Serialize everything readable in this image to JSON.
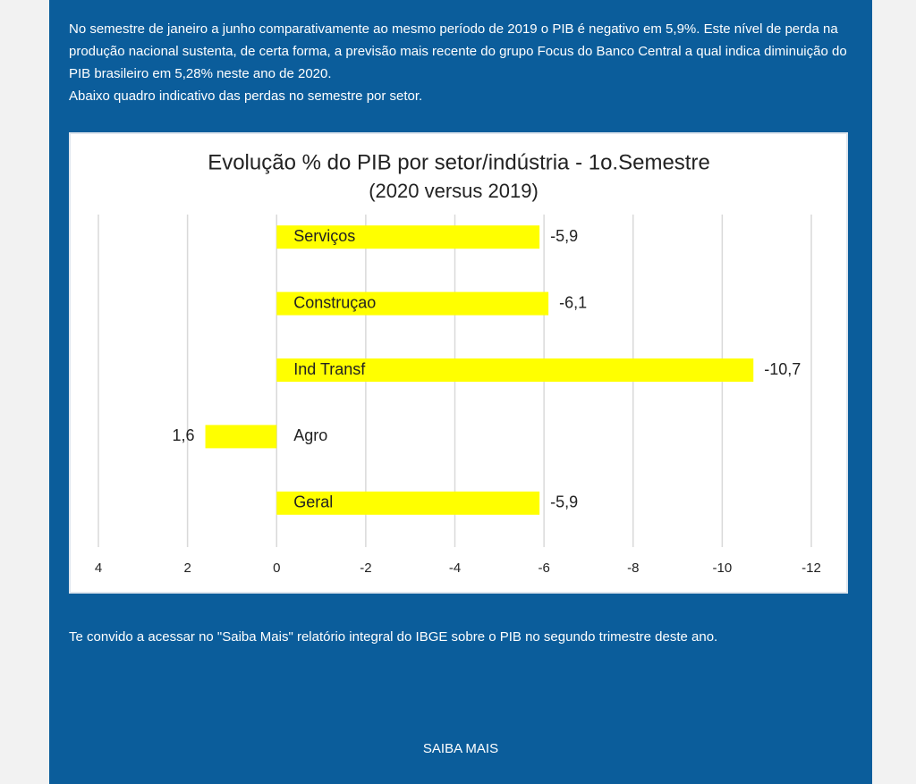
{
  "paragraphs": [
    "No semestre de janeiro a junho comparativamente ao mesmo período de 2019 o PIB é negativo em 5,9%. Este nível de perda na produção nacional sustenta, de certa forma, a previsão mais recente do grupo Focus do Banco Central a qual indica diminuição do PIB brasileiro em 5,28% neste ano de 2020.",
    "Abaixo quadro indicativo das perdas no semestre por setor."
  ],
  "chart_data": {
    "type": "bar",
    "orientation": "horizontal",
    "title": "Evolução % do PIB por setor/indústria - 1o.Semestre",
    "subtitle": "(2020 versus 2019)",
    "categories": [
      "Serviços",
      "Construçao",
      "Ind Transf",
      "Agro",
      "Geral"
    ],
    "values": [
      -5.9,
      -6.1,
      -10.7,
      1.6,
      -5.9
    ],
    "value_labels": [
      "-5,9",
      "-6,1",
      "-10,7",
      "1,6",
      "-5,9"
    ],
    "color": "#ffff00",
    "xlim": [
      4,
      -12
    ],
    "xticks": [
      4,
      2,
      0,
      -2,
      -4,
      -6,
      -8,
      -10,
      -12
    ],
    "grid": true
  },
  "footer_text": "Te convido a acessar no \"Saiba Mais\" relatório integral do IBGE sobre o PIB no segundo trimestre deste ano.",
  "button": "SAIBA MAIS"
}
